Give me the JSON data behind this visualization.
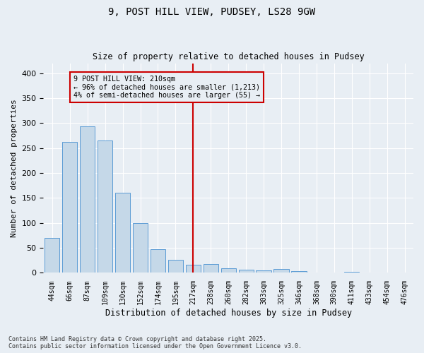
{
  "title": "9, POST HILL VIEW, PUDSEY, LS28 9GW",
  "subtitle": "Size of property relative to detached houses in Pudsey",
  "xlabel": "Distribution of detached houses by size in Pudsey",
  "ylabel": "Number of detached properties",
  "categories": [
    "44sqm",
    "66sqm",
    "87sqm",
    "109sqm",
    "130sqm",
    "152sqm",
    "174sqm",
    "195sqm",
    "217sqm",
    "238sqm",
    "260sqm",
    "282sqm",
    "303sqm",
    "325sqm",
    "346sqm",
    "368sqm",
    "390sqm",
    "411sqm",
    "433sqm",
    "454sqm",
    "476sqm"
  ],
  "values": [
    70,
    263,
    293,
    265,
    160,
    100,
    47,
    26,
    16,
    17,
    9,
    6,
    5,
    8,
    4,
    1,
    0,
    2,
    1,
    1,
    1
  ],
  "bar_color": "#c5d8e8",
  "bar_edge_color": "#5b9bd5",
  "vline_x": 8,
  "vline_color": "#cc0000",
  "annotation_title": "9 POST HILL VIEW: 210sqm",
  "annotation_line1": "← 96% of detached houses are smaller (1,213)",
  "annotation_line2": "4% of semi-detached houses are larger (55) →",
  "annotation_box_color": "#cc0000",
  "ylim": [
    0,
    420
  ],
  "yticks": [
    0,
    50,
    100,
    150,
    200,
    250,
    300,
    350,
    400
  ],
  "background_color": "#e8eef4",
  "footer_line1": "Contains HM Land Registry data © Crown copyright and database right 2025.",
  "footer_line2": "Contains public sector information licensed under the Open Government Licence v3.0."
}
